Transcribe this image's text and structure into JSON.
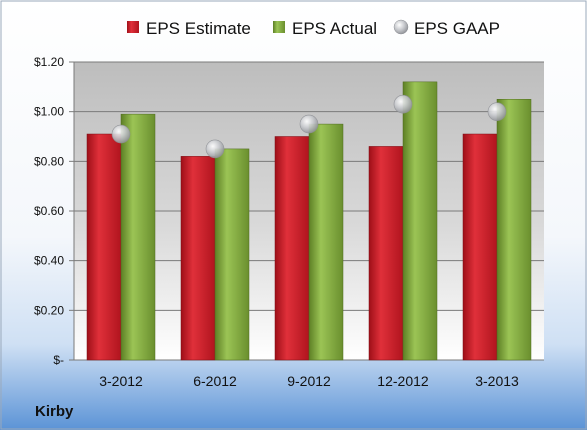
{
  "company": "Kirby",
  "colors": {
    "estimate": "#c81e28",
    "actual": "#7ea53a",
    "gaap": "#b7b9bd"
  },
  "chart_data": {
    "type": "bar",
    "categories": [
      "3-2012",
      "6-2012",
      "9-2012",
      "12-2012",
      "3-2013"
    ],
    "series": [
      {
        "name": "EPS Estimate",
        "type": "bar",
        "values": [
          0.91,
          0.82,
          0.9,
          0.86,
          0.91
        ]
      },
      {
        "name": "EPS Actual",
        "type": "bar",
        "values": [
          0.99,
          0.85,
          0.95,
          1.12,
          1.05
        ]
      },
      {
        "name": "EPS GAAP",
        "type": "scatter",
        "values": [
          0.91,
          0.85,
          0.95,
          1.03,
          1.0
        ]
      }
    ],
    "ylim": [
      0,
      1.2
    ],
    "yticks": [
      0,
      0.2,
      0.4,
      0.6,
      0.8,
      1.0,
      1.2
    ],
    "ytick_labels": [
      "$-",
      "$0.20",
      "$0.40",
      "$0.60",
      "$0.80",
      "$1.00",
      "$1.20"
    ],
    "legend": [
      "EPS Estimate",
      "EPS Actual",
      "EPS GAAP"
    ],
    "legend_position": "top",
    "grid": true
  }
}
